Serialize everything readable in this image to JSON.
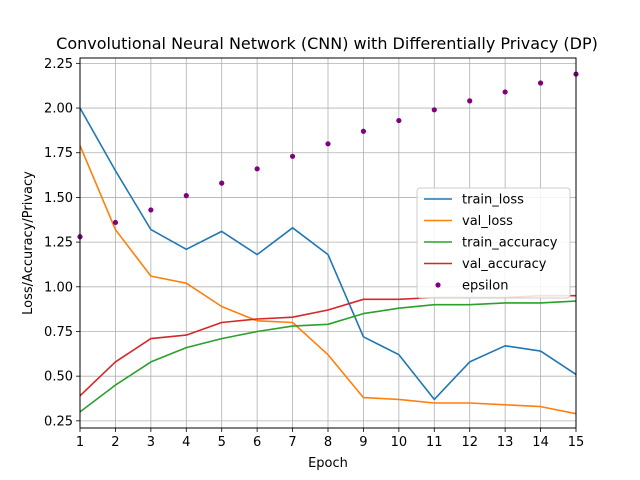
{
  "chart_data": {
    "type": "line",
    "title": "Convolutional Neural Network (CNN) with Differentially Privacy (DP)",
    "xlabel": "Epoch",
    "ylabel": "Loss/Accuracy/Privacy",
    "xlim": [
      1,
      15
    ],
    "ylim": [
      0.21,
      2.28
    ],
    "x_ticks": [
      1,
      2,
      3,
      4,
      5,
      6,
      7,
      8,
      9,
      10,
      11,
      12,
      13,
      14,
      15
    ],
    "y_ticks": [
      "0.25",
      "0.50",
      "0.75",
      "1.00",
      "1.25",
      "1.50",
      "1.75",
      "2.00",
      "2.25"
    ],
    "grid": true,
    "legend_position": "center-right",
    "x": [
      1,
      2,
      3,
      4,
      5,
      6,
      7,
      8,
      9,
      10,
      11,
      12,
      13,
      14,
      15
    ],
    "series": [
      {
        "name": "train_loss",
        "style": "line",
        "color": "#1f77b4",
        "values": [
          2.0,
          1.65,
          1.32,
          1.21,
          1.31,
          1.18,
          1.33,
          1.18,
          0.72,
          0.62,
          0.37,
          0.58,
          0.67,
          0.64,
          0.51
        ]
      },
      {
        "name": "val_loss",
        "style": "line",
        "color": "#ff7f0e",
        "values": [
          1.79,
          1.32,
          1.06,
          1.02,
          0.89,
          0.81,
          0.8,
          0.62,
          0.38,
          0.37,
          0.35,
          0.35,
          0.34,
          0.33,
          0.29
        ]
      },
      {
        "name": "train_accuracy",
        "style": "line",
        "color": "#2ca02c",
        "values": [
          0.3,
          0.45,
          0.58,
          0.66,
          0.71,
          0.75,
          0.78,
          0.79,
          0.85,
          0.88,
          0.9,
          0.9,
          0.91,
          0.91,
          0.92
        ]
      },
      {
        "name": "val_accuracy",
        "style": "line",
        "color": "#d62728",
        "values": [
          0.39,
          0.58,
          0.71,
          0.73,
          0.8,
          0.82,
          0.83,
          0.87,
          0.93,
          0.93,
          0.94,
          0.94,
          0.94,
          0.95,
          0.95
        ]
      },
      {
        "name": "epsilon",
        "style": "dots",
        "color": "#800080",
        "values": [
          1.28,
          1.36,
          1.43,
          1.51,
          1.58,
          1.66,
          1.73,
          1.8,
          1.87,
          1.93,
          1.99,
          2.04,
          2.09,
          2.14,
          2.19
        ]
      }
    ]
  }
}
